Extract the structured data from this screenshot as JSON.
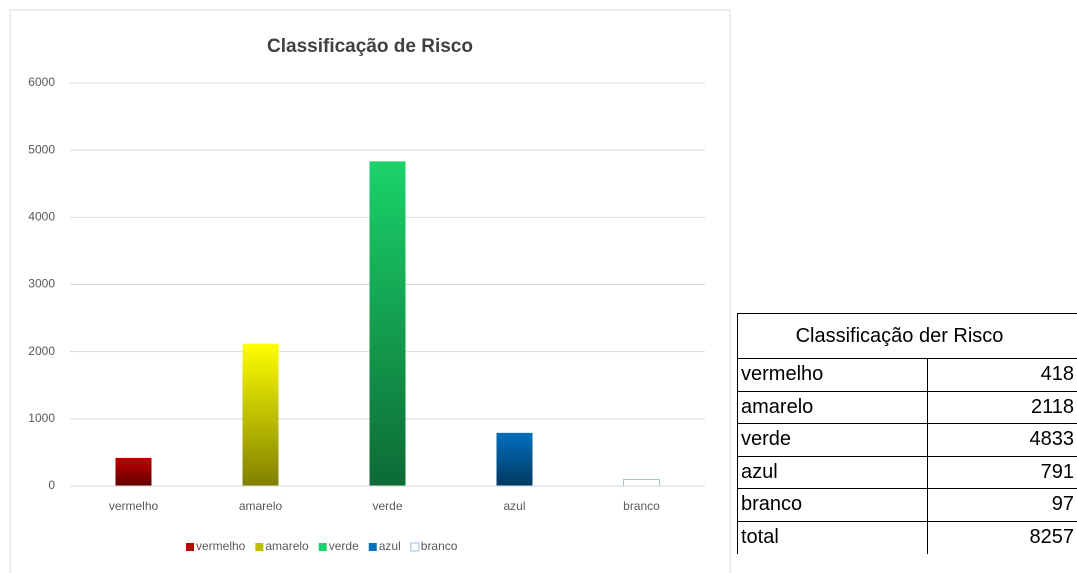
{
  "chart_data": {
    "type": "bar",
    "title": "Classificação de Risco",
    "categories": [
      "vermelho",
      "amarelo",
      "verde",
      "azul",
      "branco"
    ],
    "values": [
      418,
      2118,
      4833,
      791,
      97
    ],
    "colors": [
      "#c00000",
      "#ffff00",
      "#1ad36a",
      "#0070c0",
      "#ffffff"
    ],
    "ylim": [
      0,
      6000
    ],
    "yticks": [
      0,
      1000,
      2000,
      3000,
      4000,
      5000,
      6000
    ],
    "grid": true,
    "legend": "bottom"
  },
  "table": {
    "header": "Classificação der Risco",
    "rows": [
      [
        "vermelho",
        418
      ],
      [
        "amarelo",
        2118
      ],
      [
        "verde",
        4833
      ],
      [
        "azul",
        791
      ],
      [
        "branco",
        97
      ],
      [
        "total",
        8257
      ]
    ]
  }
}
